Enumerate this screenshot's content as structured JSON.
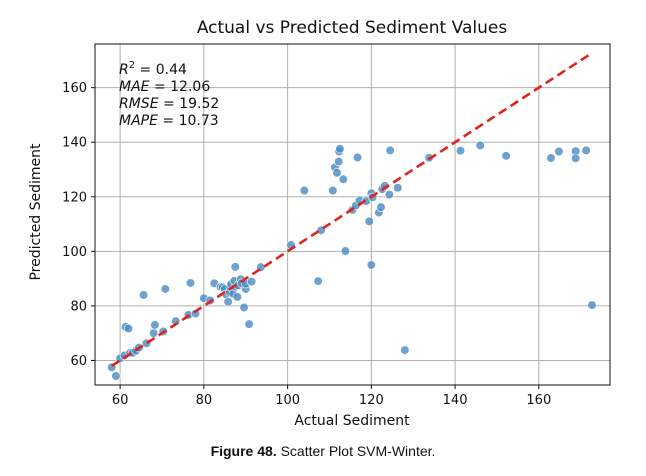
{
  "chart_data": {
    "type": "scatter",
    "title": "Actual vs Predicted Sediment Values",
    "xlabel": "Actual Sediment",
    "ylabel": "Predicted Sediment",
    "xlim": [
      54,
      177
    ],
    "ylim": [
      51,
      176
    ],
    "xticks": [
      60,
      80,
      100,
      120,
      140,
      160
    ],
    "yticks": [
      60,
      80,
      100,
      120,
      140,
      160
    ],
    "grid": true,
    "point_color": "#4a8bc2",
    "line_color": "#e0231c",
    "identity_line": {
      "x": [
        58,
        172
      ],
      "y": [
        58,
        172
      ],
      "style": "dashed"
    },
    "stats": [
      {
        "name": "R",
        "sup": "2",
        "eq": " = 0.44"
      },
      {
        "name": "MAE",
        "sup": "",
        "eq": " = 12.06"
      },
      {
        "name": "RMSE",
        "sup": "",
        "eq": " = 19.52"
      },
      {
        "name": "MAPE",
        "sup": "",
        "eq": " = 10.73"
      }
    ],
    "points": [
      [
        58,
        57.5
      ],
      [
        59,
        54.3
      ],
      [
        60,
        60.8
      ],
      [
        61,
        61.8
      ],
      [
        61.3,
        72.3
      ],
      [
        62,
        71.7
      ],
      [
        62.4,
        62.8
      ],
      [
        63,
        62.8
      ],
      [
        63.8,
        63.6
      ],
      [
        64.5,
        64.7
      ],
      [
        65.6,
        84
      ],
      [
        66.3,
        66.3
      ],
      [
        68,
        70
      ],
      [
        68.3,
        73
      ],
      [
        70.3,
        70.6
      ],
      [
        70.8,
        86.2
      ],
      [
        73.3,
        74.4
      ],
      [
        76.3,
        76.7
      ],
      [
        76.8,
        88.4
      ],
      [
        78,
        77.2
      ],
      [
        80,
        82.8
      ],
      [
        81.5,
        82
      ],
      [
        82.5,
        88.3
      ],
      [
        84,
        86.9
      ],
      [
        84.5,
        86.8
      ],
      [
        85,
        86.2
      ],
      [
        85.3,
        84.3
      ],
      [
        85.8,
        81.5
      ],
      [
        86.2,
        85
      ],
      [
        86.3,
        87
      ],
      [
        86.5,
        88
      ],
      [
        87,
        84.4
      ],
      [
        87.5,
        87
      ],
      [
        87.3,
        89.2
      ],
      [
        87.5,
        94.3
      ],
      [
        88,
        83.3
      ],
      [
        88.2,
        87.5
      ],
      [
        88.8,
        89.8
      ],
      [
        89,
        88.3
      ],
      [
        89.6,
        79.4
      ],
      [
        90,
        86.2
      ],
      [
        90,
        88.1
      ],
      [
        90.8,
        73.3
      ],
      [
        91.4,
        88.9
      ],
      [
        93.6,
        94.2
      ],
      [
        100.8,
        102.3
      ],
      [
        104,
        122.3
      ],
      [
        107.3,
        89.1
      ],
      [
        108,
        107.7
      ],
      [
        110.8,
        122.3
      ],
      [
        111.3,
        130.8
      ],
      [
        111.8,
        128.8
      ],
      [
        112.2,
        132.9
      ],
      [
        112.3,
        136.6
      ],
      [
        112.5,
        137.6
      ],
      [
        113.3,
        126.4
      ],
      [
        113.8,
        100.1
      ],
      [
        115.5,
        115.2
      ],
      [
        116.3,
        116.8
      ],
      [
        116.7,
        134.4
      ],
      [
        117.2,
        118.7
      ],
      [
        118.8,
        118.4
      ],
      [
        119.5,
        111
      ],
      [
        120,
        95
      ],
      [
        120,
        121.3
      ],
      [
        120.3,
        119.8
      ],
      [
        121.8,
        114.2
      ],
      [
        122.3,
        116.2
      ],
      [
        122.6,
        122.8
      ],
      [
        123.2,
        124
      ],
      [
        124.3,
        120.8
      ],
      [
        124.5,
        137
      ],
      [
        126.3,
        123.3
      ],
      [
        128,
        63.8
      ],
      [
        133.8,
        134.3
      ],
      [
        141.3,
        136.9
      ],
      [
        146,
        138.8
      ],
      [
        152.2,
        135
      ],
      [
        162.9,
        134.2
      ],
      [
        164.8,
        136.6
      ],
      [
        168.8,
        136.7
      ],
      [
        168.8,
        134.1
      ],
      [
        171.3,
        137
      ],
      [
        172.7,
        80.3
      ]
    ]
  },
  "caption": {
    "label": "Figure 48.",
    "text": " Scatter Plot SVM-Winter."
  }
}
